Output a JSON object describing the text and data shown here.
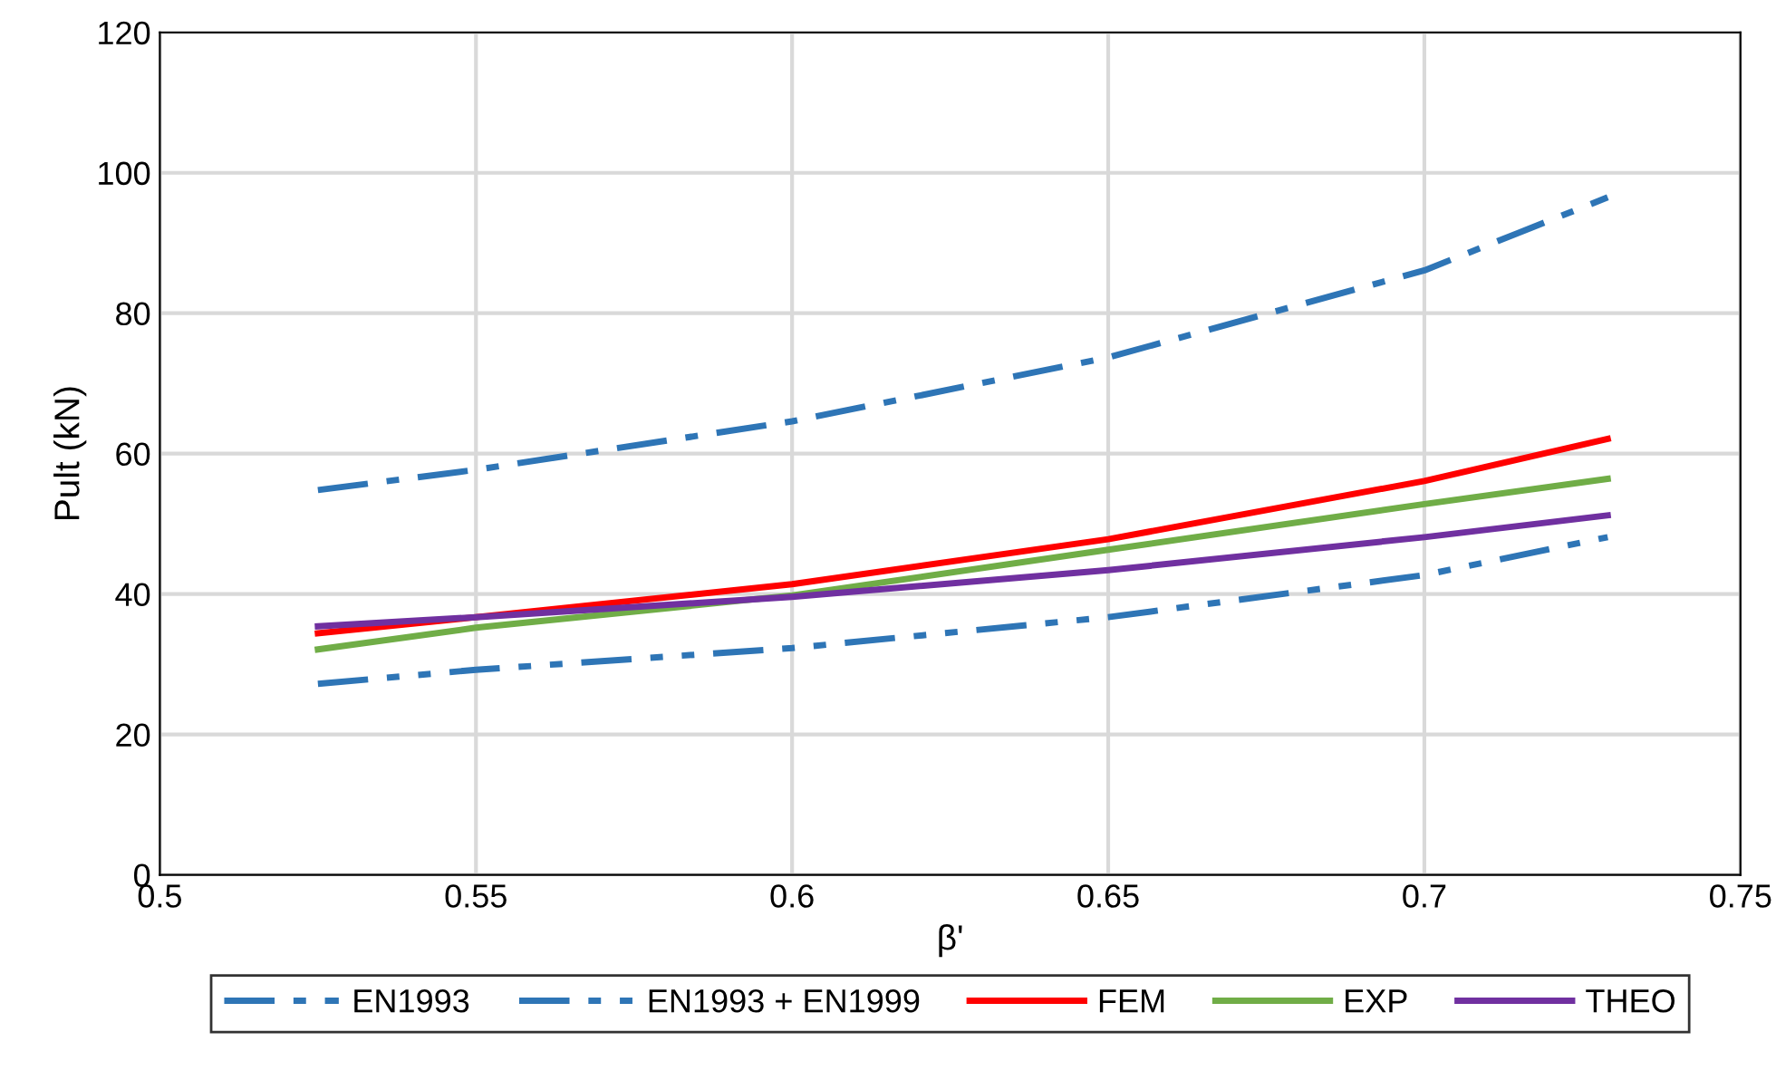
{
  "chart_data": {
    "type": "line",
    "xlabel": "β'",
    "ylabel": "Pult (kN)",
    "xlim": [
      0.5,
      0.75
    ],
    "xticks": [
      0.5,
      0.55,
      0.6,
      0.65,
      0.7,
      0.75
    ],
    "ylim": [
      0,
      120
    ],
    "yticks": [
      0,
      20,
      40,
      60,
      80,
      100,
      120
    ],
    "grid": true,
    "legend": "bottom",
    "marker": "none",
    "series": [
      {
        "name": "EN1993",
        "color": "#2e75b6",
        "line_style": "dashdot",
        "x": [
          0.525,
          0.55,
          0.6,
          0.65,
          0.7,
          0.729
        ],
        "values": [
          54.8,
          57.7,
          64.6,
          73.7,
          86.1,
          96.5
        ]
      },
      {
        "name": "EN1993 + EN1999",
        "color": "#2e75b6",
        "line_style": "dashdotdot",
        "x": [
          0.525,
          0.55,
          0.6,
          0.65,
          0.7,
          0.729
        ],
        "values": [
          27.2,
          29.2,
          32.3,
          36.7,
          42.7,
          48.1
        ]
      },
      {
        "name": "FEM",
        "color": "#ff0000",
        "line_style": "solid",
        "x": [
          0.525,
          0.55,
          0.6,
          0.65,
          0.7,
          0.729
        ],
        "values": [
          34.4,
          36.7,
          41.4,
          47.8,
          56.1,
          62.1
        ]
      },
      {
        "name": "EXP",
        "color": "#70ad47",
        "line_style": "solid",
        "x": [
          0.525,
          0.55,
          0.6,
          0.65,
          0.7,
          0.729
        ],
        "values": [
          32.1,
          35.2,
          39.8,
          46.3,
          52.8,
          56.4
        ]
      },
      {
        "name": "THEO",
        "color": "#7030a0",
        "line_style": "solid",
        "x": [
          0.525,
          0.55,
          0.6,
          0.65,
          0.7,
          0.729
        ],
        "values": [
          35.4,
          36.7,
          39.6,
          43.4,
          48.1,
          51.2
        ]
      }
    ]
  }
}
